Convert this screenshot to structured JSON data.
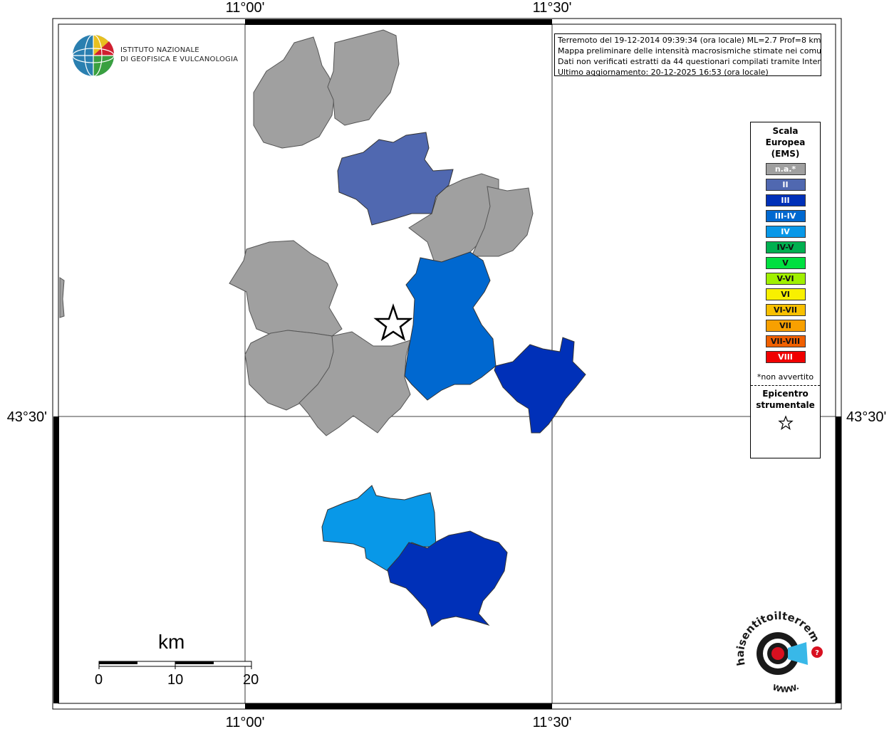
{
  "map": {
    "longitude_ticks": [
      "11°00'",
      "11°30'"
    ],
    "latitude_ticks": [
      "43°30'"
    ]
  },
  "info": {
    "line1": "Terremoto del 19-12-2014 09:39:34 (ora locale) ML=2.7 Prof=8 km",
    "line2": "Mappa preliminare delle intensità macrosismiche stimate nei comuni",
    "line3": "Dati non verificati estratti da 44 questionari compilati tramite Internet.",
    "line4": "Ultimo aggiornamento: 20-12-2025 16:53 (ora locale)"
  },
  "legend": {
    "title_line1": "Scala",
    "title_line2": "Europea",
    "title_line3": "(EMS)",
    "items": [
      {
        "label": "n.a.*",
        "color": "#a0a0a0"
      },
      {
        "label": "II",
        "color": "#5068b0"
      },
      {
        "label": "III",
        "color": "#0030b8"
      },
      {
        "label": "III-IV",
        "color": "#0068d0"
      },
      {
        "label": "IV",
        "color": "#0898e8"
      },
      {
        "label": "IV-V",
        "color": "#00b050"
      },
      {
        "label": "V",
        "color": "#00e040"
      },
      {
        "label": "V-VI",
        "color": "#a0f000"
      },
      {
        "label": "VI",
        "color": "#f8f000"
      },
      {
        "label": "VI-VII",
        "color": "#f8c000"
      },
      {
        "label": "VII",
        "color": "#f8a000"
      },
      {
        "label": "VII-VIII",
        "color": "#f06000"
      },
      {
        "label": "VIII",
        "color": "#f00000"
      }
    ],
    "note": "*non avvertito",
    "epicenter_line1": "Epicentro",
    "epicenter_line2": "strumentale"
  },
  "logo": {
    "line1": "ISTITUTO NAZIONALE",
    "line2": "DI GEOFISICA E VULCANOLOGIA"
  },
  "scalebar": {
    "unit": "km",
    "ticks": [
      "0",
      "10",
      "20"
    ]
  },
  "logo_hsit": {
    "text": "haisentitoilterremoto.it",
    "www": "WWW."
  }
}
